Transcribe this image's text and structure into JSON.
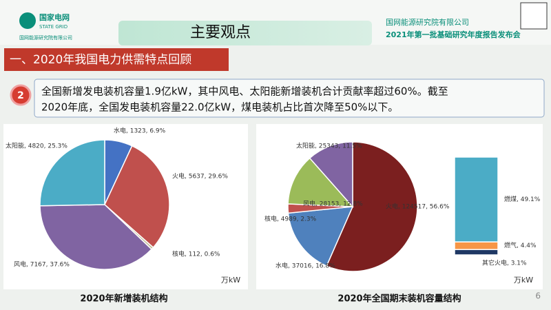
{
  "header": {
    "logo": "国家电网",
    "logo_en": "STATE GRID",
    "logo_org": "国网能源研究院有限公司",
    "title": "主要观点",
    "org": "国网能源研究院有限公司",
    "event": "2021年第一批基础研究年度报告发布会"
  },
  "section": "一、2020年我国电力供需特点回顾",
  "point": {
    "number": "2",
    "lines": [
      "全国新增发电装机容量1.9亿kW，其中风电、太阳能新增装机合计贡献率超过60%。截至",
      "2020年底，全国发电装机容量22.0亿kW，煤电装机占比首次降至50%以下。"
    ]
  },
  "page_number": "6",
  "chart_data": [
    {
      "type": "pie",
      "title": "2020年新增装机结构",
      "unit": "万kW",
      "labels": [
        "水电, 1323, 6.9%",
        "火电, 5637, 29.6%",
        "核电, 112, 0.6%",
        "风电, 7167, 37.6%",
        "太阳能, 4820, 25.3%"
      ],
      "values": [
        1323,
        5637,
        112,
        7167,
        4820
      ],
      "colors": [
        "#4472c4",
        "#c0504d",
        "#c4bd97",
        "#8064a2",
        "#4bacc6"
      ]
    },
    {
      "type": "pie",
      "title": "2020年全国期末装机容量结构",
      "unit": "万kW",
      "labels": [
        "火电, 124517, 56.6%",
        "水电, 37016, 16.8%",
        "核电, 4989, 2.3%",
        "风电, 28153, 12.8%",
        "太阳能, 25343, 11.5%"
      ],
      "values": [
        124517,
        37016,
        4989,
        28153,
        25343
      ],
      "colors": [
        "#7b1f1f",
        "#4f81bd",
        "#c0504d",
        "#9bbb59",
        "#8064a2"
      ],
      "breakdown": {
        "labels": [
          "燃煤, 49.1%",
          "燃气, 4.4%",
          "其它火电, 3.1%"
        ],
        "values": [
          49.1,
          4.4,
          3.1
        ],
        "colors": [
          "#4bacc6",
          "#f79646",
          "#1f3864"
        ]
      }
    }
  ]
}
